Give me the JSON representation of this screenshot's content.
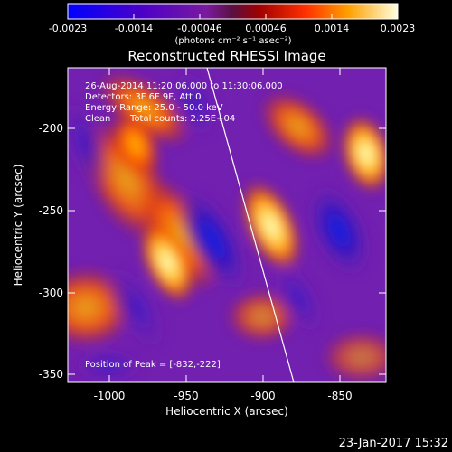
{
  "colorbar": {
    "tick_labels": [
      "-0.0023",
      "-0.0014",
      "-0.00046",
      "0.00046",
      "0.0014",
      "0.0023"
    ],
    "unit_label": "(photons cm⁻² s⁻¹ asec⁻²)",
    "range": [
      -0.0023,
      0.0023
    ]
  },
  "plot": {
    "title": "Reconstructed RHESSI Image",
    "xlabel": "Heliocentric X (arcsec)",
    "ylabel": "Heliocentric Y (arcsec)",
    "x_ticks": [
      "-1000",
      "-950",
      "-900",
      "-850"
    ],
    "y_ticks": [
      "-200",
      "-250",
      "-300",
      "-350"
    ],
    "xlim": [
      -1015,
      -825
    ],
    "ylim": [
      -355,
      -162
    ]
  },
  "annotations": {
    "time_range": "26-Aug-2014 11:20:06.000 to 11:30:06.000",
    "detectors": "Detectors: 3F 6F 9F, Att 0",
    "energy": "Energy Range: 25.0 - 50.0 keV",
    "clean": "Clean",
    "total_counts": "Total counts: 2.25E+04",
    "peak": "Position of Peak = [-832,-222]"
  },
  "footer": {
    "timestamp": "23-Jan-2017 15:32"
  }
}
